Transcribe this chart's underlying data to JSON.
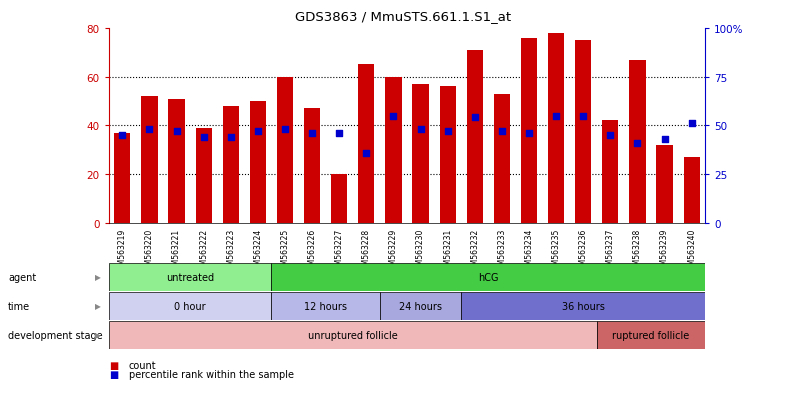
{
  "title": "GDS3863 / MmuSTS.661.1.S1_at",
  "samples": [
    "GSM563219",
    "GSM563220",
    "GSM563221",
    "GSM563222",
    "GSM563223",
    "GSM563224",
    "GSM563225",
    "GSM563226",
    "GSM563227",
    "GSM563228",
    "GSM563229",
    "GSM563230",
    "GSM563231",
    "GSM563232",
    "GSM563233",
    "GSM563234",
    "GSM563235",
    "GSM563236",
    "GSM563237",
    "GSM563238",
    "GSM563239",
    "GSM563240"
  ],
  "counts": [
    37,
    52,
    51,
    39,
    48,
    50,
    60,
    47,
    20,
    65,
    60,
    57,
    56,
    71,
    53,
    76,
    78,
    75,
    42,
    67,
    32,
    27
  ],
  "percentiles": [
    45,
    48,
    47,
    44,
    44,
    47,
    48,
    46,
    46,
    36,
    55,
    48,
    47,
    54,
    47,
    46,
    55,
    55,
    45,
    41,
    43,
    51
  ],
  "bar_color": "#cc0000",
  "dot_color": "#0000cc",
  "ylim_left": [
    0,
    80
  ],
  "ylim_right": [
    0,
    100
  ],
  "yticks_left": [
    0,
    20,
    40,
    60,
    80
  ],
  "yticks_right": [
    0,
    25,
    50,
    75,
    100
  ],
  "agent_groups": [
    {
      "label": "untreated",
      "start": 0,
      "end": 6,
      "color": "#90ee90"
    },
    {
      "label": "hCG",
      "start": 6,
      "end": 22,
      "color": "#44cc44"
    }
  ],
  "time_groups": [
    {
      "label": "0 hour",
      "start": 0,
      "end": 6,
      "color": "#d0d0f0"
    },
    {
      "label": "12 hours",
      "start": 6,
      "end": 10,
      "color": "#b8b8e8"
    },
    {
      "label": "24 hours",
      "start": 10,
      "end": 13,
      "color": "#a8a8de"
    },
    {
      "label": "36 hours",
      "start": 13,
      "end": 22,
      "color": "#7070cc"
    }
  ],
  "dev_groups": [
    {
      "label": "unruptured follicle",
      "start": 0,
      "end": 18,
      "color": "#f0b8b8"
    },
    {
      "label": "ruptured follicle",
      "start": 18,
      "end": 22,
      "color": "#cc6666"
    }
  ],
  "legend_count_color": "#cc0000",
  "legend_dot_color": "#0000cc",
  "background_color": "#ffffff",
  "left_axis_color": "#cc0000",
  "right_axis_color": "#0000cc",
  "right_tick_labels": [
    "0",
    "25",
    "50",
    "75",
    "100%"
  ]
}
